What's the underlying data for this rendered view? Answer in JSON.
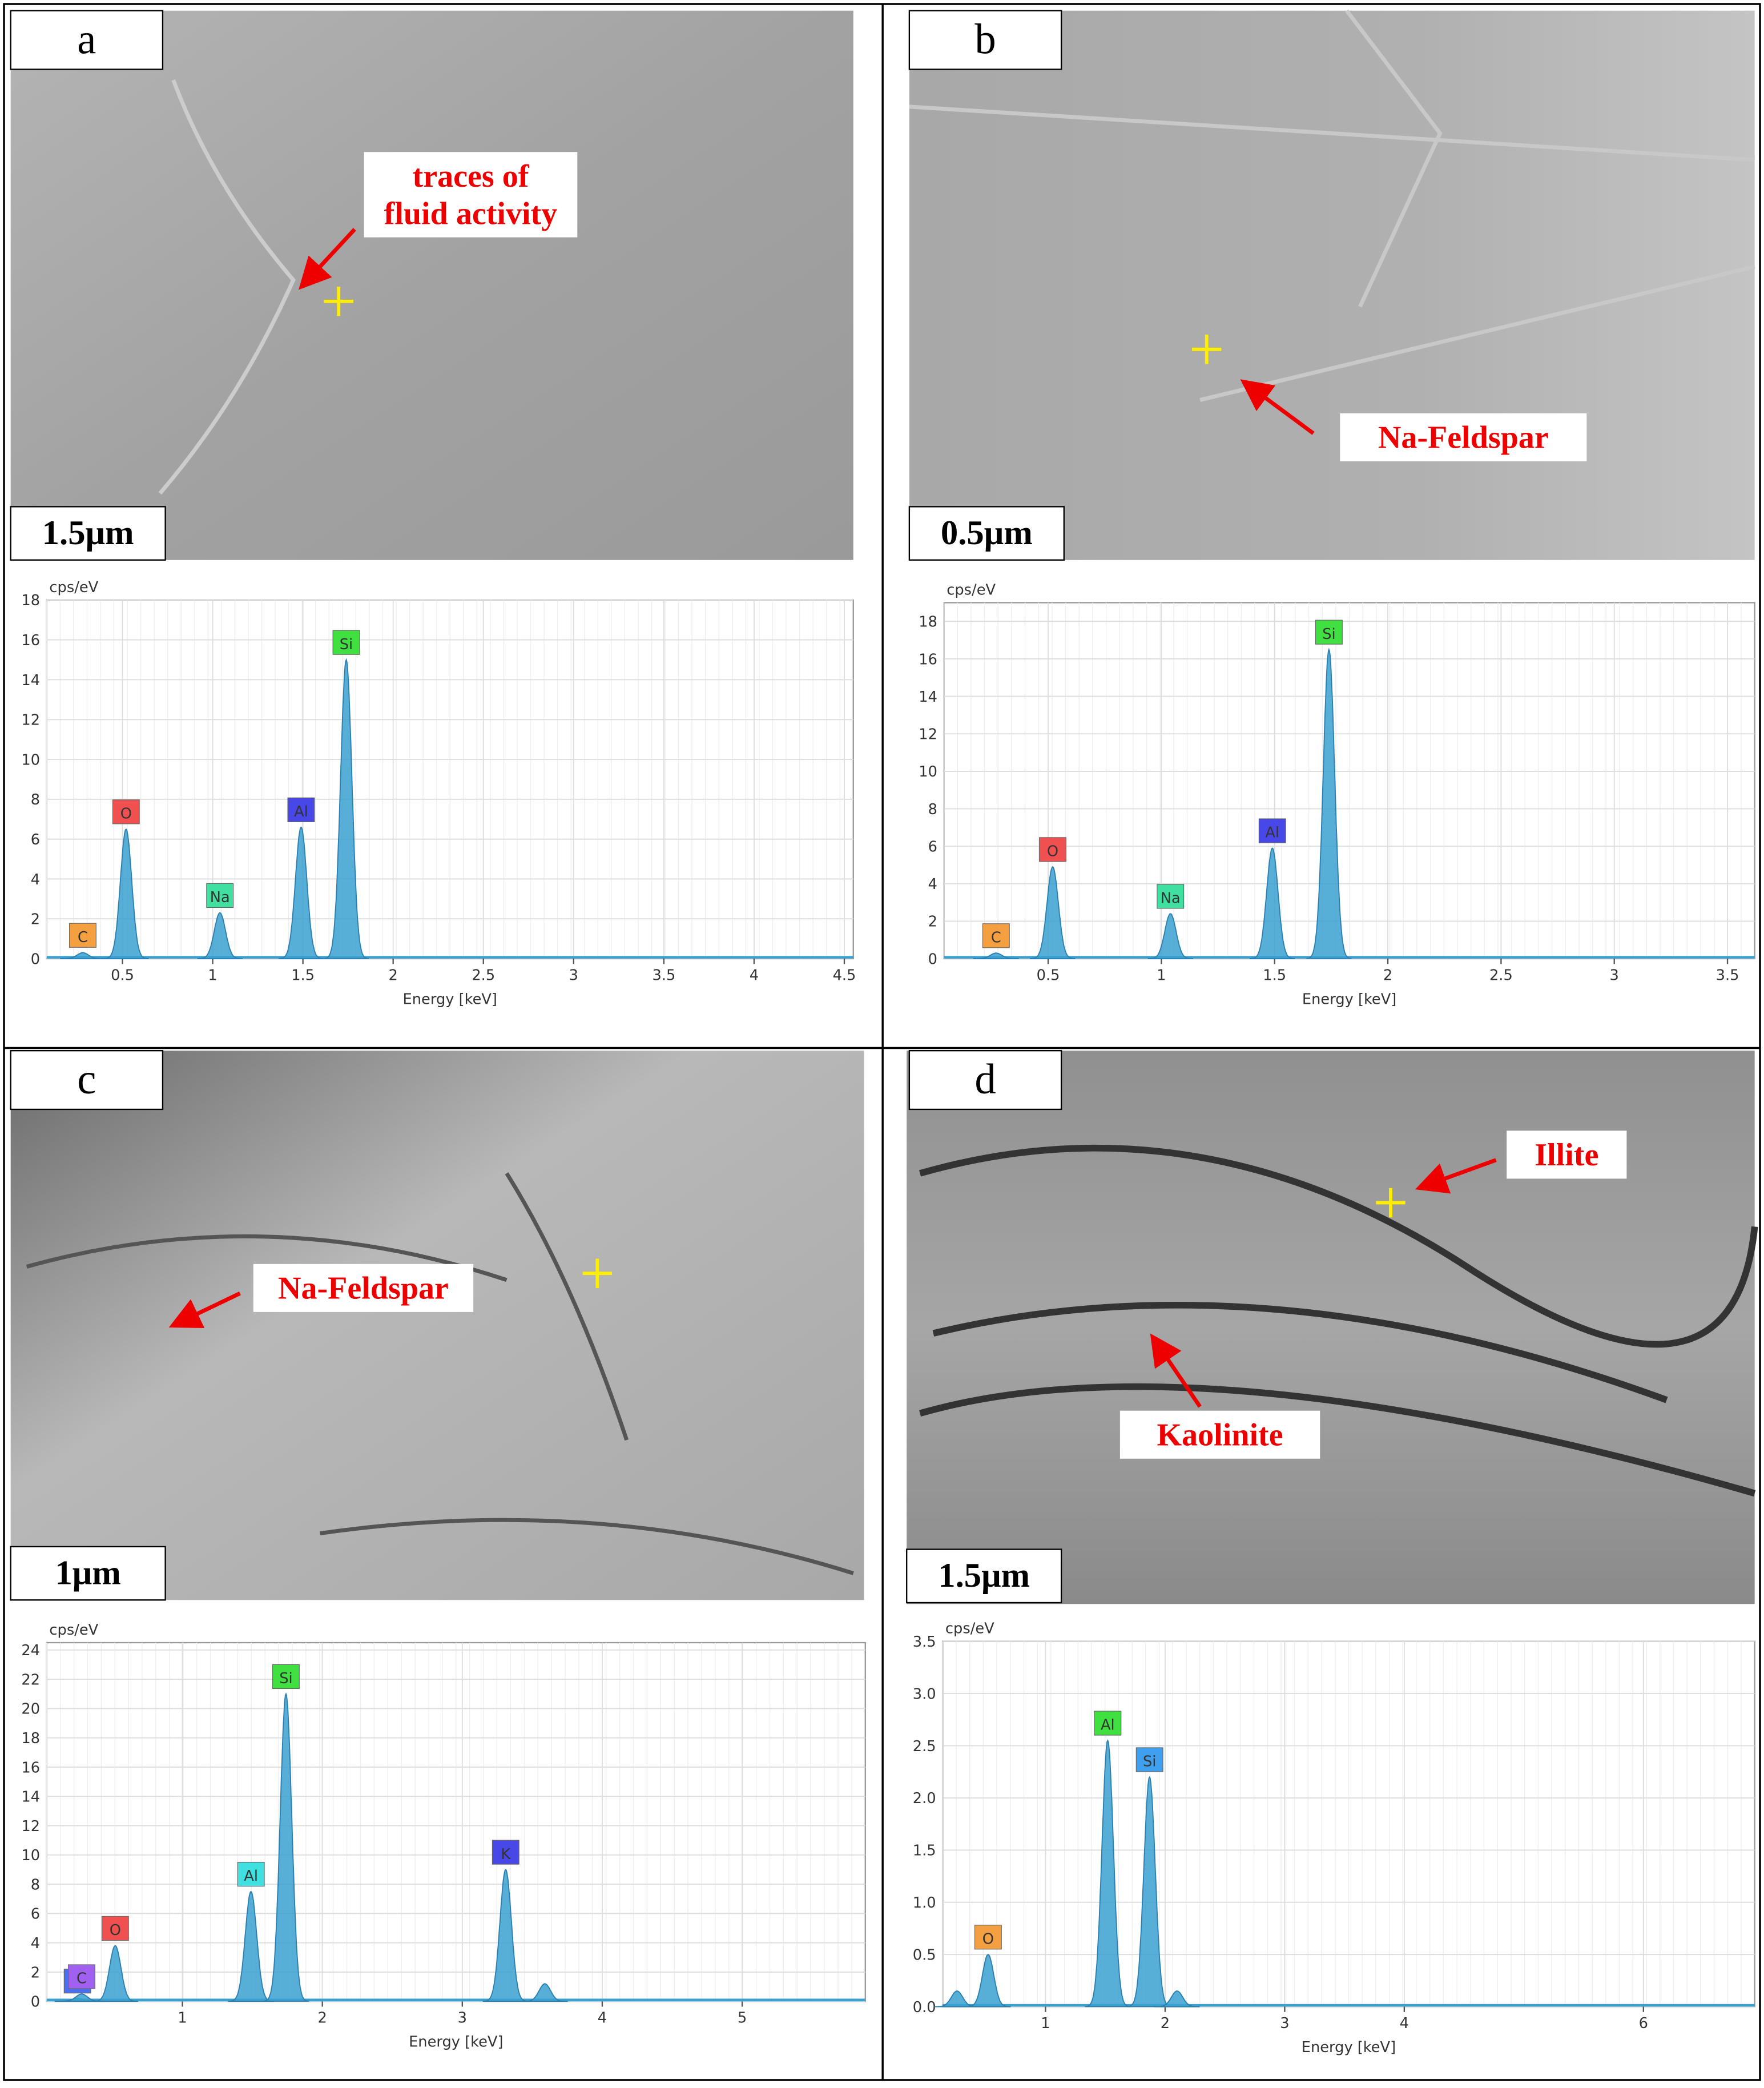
{
  "panels": [
    {
      "letter": "a",
      "scale_bar": "1.5μm",
      "annotations": [
        [
          "traces of",
          "fluid activity"
        ]
      ]
    },
    {
      "letter": "b",
      "scale_bar": "0.5μm",
      "annotations": [
        [
          "Na-Feldspar"
        ]
      ]
    },
    {
      "letter": "c",
      "scale_bar": "1μm",
      "annotations": [
        [
          "Na-Feldspar"
        ]
      ]
    },
    {
      "letter": "d",
      "scale_bar": "1.5μm",
      "annotations": [
        [
          "Illite"
        ],
        [
          "Kaolinite"
        ]
      ]
    }
  ],
  "chart_data": [
    {
      "type": "spectrum",
      "y_label": "cps/eV",
      "x_label": "Energy [keV]",
      "xlim": [
        0.08,
        4.55
      ],
      "xticks": [
        0.5,
        1.0,
        1.5,
        2.0,
        2.5,
        3.0,
        3.5,
        4.0,
        4.5
      ],
      "ylim": [
        0,
        18
      ],
      "yticks": [
        0,
        2,
        4,
        6,
        8,
        10,
        12,
        14,
        16,
        18
      ],
      "grid": true,
      "color": "#3aa0d0",
      "peaks": {
        "labels": [
          "C",
          "O",
          "Na",
          "Al",
          "Si"
        ],
        "label_colors": [
          "#f5a040",
          "#f05050",
          "#40e0a0",
          "#4848e8",
          "#40e040"
        ],
        "x": [
          0.28,
          0.52,
          1.04,
          1.49,
          1.74
        ],
        "values": [
          0.3,
          6.5,
          2.3,
          6.6,
          15
        ]
      }
    },
    {
      "type": "spectrum",
      "y_label": "cps/eV",
      "x_label": "Energy [keV]",
      "xlim": [
        0.04,
        3.62
      ],
      "xticks": [
        0.5,
        1.0,
        1.5,
        2.0,
        2.5,
        3.0,
        3.5
      ],
      "ylim": [
        0,
        19
      ],
      "yticks": [
        0,
        2,
        4,
        6,
        8,
        10,
        12,
        14,
        16,
        18
      ],
      "grid": true,
      "color": "#3aa0d0",
      "peaks": {
        "labels": [
          "C",
          "O",
          "Na",
          "Al",
          "Si"
        ],
        "label_colors": [
          "#f5a040",
          "#f05050",
          "#40e0a0",
          "#4848e8",
          "#40e040"
        ],
        "x": [
          0.27,
          0.52,
          1.04,
          1.49,
          1.74
        ],
        "values": [
          0.3,
          4.9,
          2.4,
          5.9,
          16.5
        ]
      }
    },
    {
      "type": "spectrum",
      "y_label": "cps/eV",
      "x_label": "Energy [keV]",
      "xlim": [
        0.03,
        5.88
      ],
      "xticks": [
        1,
        2,
        3,
        4,
        5
      ],
      "ylim": [
        0,
        24.5
      ],
      "yticks": [
        0,
        2,
        4,
        6,
        8,
        10,
        12,
        14,
        16,
        18,
        20,
        22,
        24
      ],
      "grid": true,
      "color": "#3aa0d0",
      "peaks": {
        "labels": [
          "K",
          "C",
          "O",
          "Al",
          "Si",
          "K",
          null
        ],
        "label_colors": [
          "#4870f0",
          "#a060f0",
          "#f05050",
          "#40e0e0",
          "#40e040",
          "#4848e8",
          null
        ],
        "x": [
          0.25,
          0.28,
          0.52,
          1.49,
          1.74,
          3.31,
          3.59
        ],
        "values": [
          0.2,
          0.5,
          3.8,
          7.5,
          21,
          9,
          1.2
        ]
      }
    },
    {
      "type": "spectrum",
      "y_label": "cps/eV",
      "x_label": "Energy [keV]",
      "xlim": [
        0.14,
        6.93
      ],
      "xticks": [
        1,
        2,
        3,
        4,
        6
      ],
      "ylim": [
        0,
        3.5
      ],
      "yticks": [
        {
          "value": 0,
          "label": "0.0"
        },
        0.5,
        {
          "value": 1,
          "label": "1.0"
        },
        1.5,
        {
          "value": 2,
          "label": "2.0"
        },
        2.5,
        {
          "value": 3,
          "label": "3.0"
        },
        3.5
      ],
      "grid": true,
      "color": "#3aa0d0",
      "peaks": {
        "labels": [
          null,
          "O",
          "Al",
          "Si",
          null
        ],
        "label_colors": [
          null,
          "#f5a040",
          "#40e040",
          "#40a0f0",
          null
        ],
        "x": [
          0.26,
          0.52,
          1.52,
          1.87,
          2.1
        ],
        "values": [
          0.15,
          0.5,
          2.55,
          2.2,
          0.15
        ]
      }
    }
  ]
}
